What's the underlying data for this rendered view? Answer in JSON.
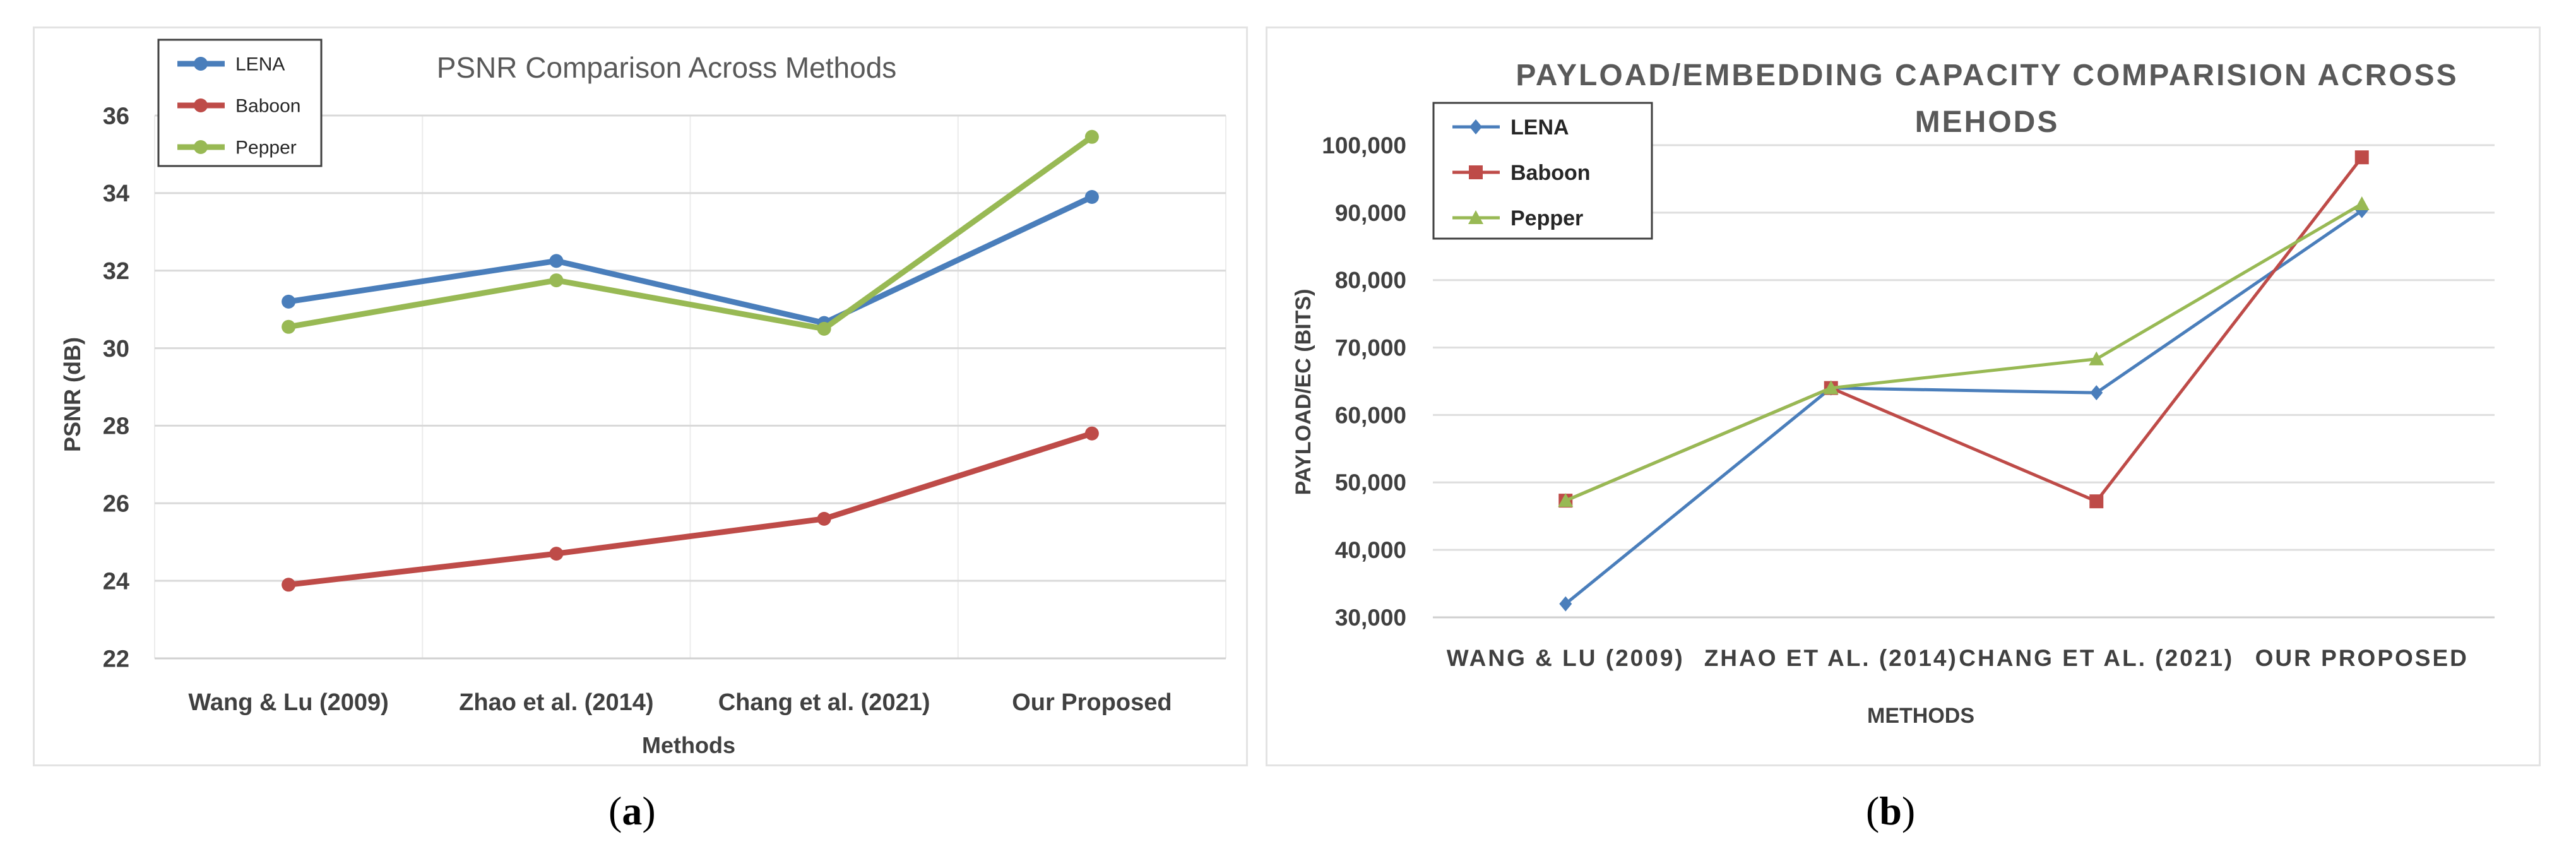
{
  "captions": {
    "a": "a",
    "b": "b"
  },
  "chart_data": [
    {
      "type": "line",
      "title": "PSNR Comparison Across Methods",
      "xlabel": "Methods",
      "ylabel": "PSNR (dB)",
      "categories": [
        "Wang & Lu (2009)",
        "Zhao et al. (2014)",
        "Chang et al. (2021)",
        "Our Proposed"
      ],
      "ylim": [
        22,
        36
      ],
      "yticks": [
        22,
        24,
        26,
        28,
        30,
        32,
        34,
        36
      ],
      "ytick_labels": [
        "22",
        "24",
        "26",
        "28",
        "30",
        "32",
        "34",
        "36"
      ],
      "grid": true,
      "legend_position": "top-left",
      "series": [
        {
          "name": "LENA",
          "color": "#4a7ebb",
          "marker": "circle",
          "values": [
            31.2,
            32.25,
            30.65,
            33.9
          ]
        },
        {
          "name": "Baboon",
          "color": "#be4b48",
          "marker": "circle",
          "values": [
            23.9,
            24.7,
            25.6,
            27.8
          ]
        },
        {
          "name": "Pepper",
          "color": "#98b954",
          "marker": "circle",
          "values": [
            30.55,
            31.75,
            30.5,
            35.45
          ]
        }
      ]
    },
    {
      "type": "line",
      "title_lines": [
        "PAYLOAD/EMBEDDING CAPACITY COMPARISION ACROSS",
        "MEHODS"
      ],
      "xlabel": "METHODS",
      "ylabel": "PAYLOAD/EC (BITS)",
      "categories": [
        "WANG & LU (2009)",
        "ZHAO ET AL. (2014)",
        "CHANG ET AL. (2021)",
        "OUR PROPOSED"
      ],
      "ylim": [
        30000,
        100000
      ],
      "yticks": [
        30000,
        40000,
        50000,
        60000,
        70000,
        80000,
        90000,
        100000
      ],
      "ytick_labels": [
        "30,000",
        "40,000",
        "50,000",
        "60,000",
        "70,000",
        "80,000",
        "90,000",
        "100,000"
      ],
      "grid": true,
      "legend_position": "top-left",
      "series": [
        {
          "name": "LENA",
          "color": "#4a7ebb",
          "marker": "diamond",
          "values": [
            32000,
            64000,
            63300,
            90300
          ]
        },
        {
          "name": "Baboon",
          "color": "#be4b48",
          "marker": "square",
          "values": [
            47300,
            64000,
            47200,
            98200
          ]
        },
        {
          "name": "Pepper",
          "color": "#98b954",
          "marker": "triangle",
          "values": [
            47300,
            64000,
            68300,
            91300
          ]
        }
      ]
    }
  ]
}
